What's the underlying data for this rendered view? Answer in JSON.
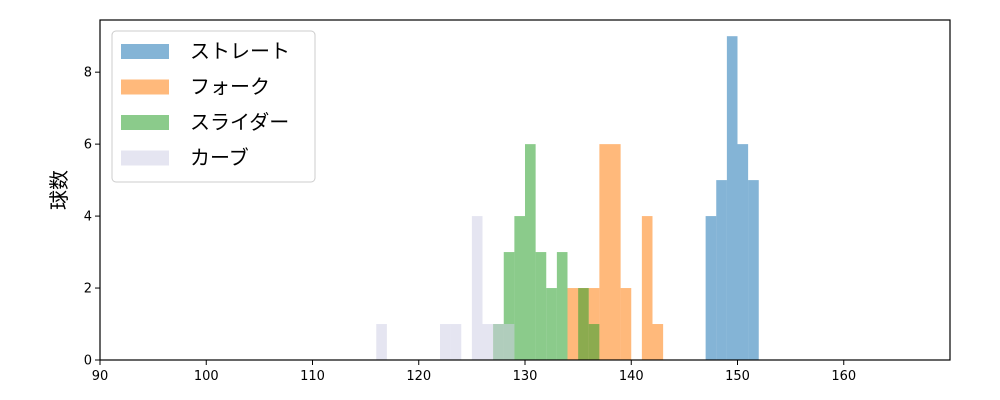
{
  "chart_data": {
    "type": "histogram",
    "xlabel": "",
    "ylabel": "球数",
    "xlim": [
      90,
      170
    ],
    "ylim": [
      0,
      9.45
    ],
    "x_ticks": [
      90,
      100,
      110,
      120,
      130,
      140,
      150,
      160
    ],
    "y_ticks": [
      0,
      2,
      4,
      6,
      8
    ],
    "grid": false,
    "legend_position": "top-left",
    "series": [
      {
        "name": "ストレート",
        "color": "#1f77b4",
        "bins": [
          {
            "start": 147.0,
            "end": 148.0,
            "count": 4
          },
          {
            "start": 148.0,
            "end": 149.0,
            "count": 5
          },
          {
            "start": 149.0,
            "end": 150.0,
            "count": 9
          },
          {
            "start": 150.0,
            "end": 151.0,
            "count": 6
          },
          {
            "start": 151.0,
            "end": 152.0,
            "count": 5
          }
        ]
      },
      {
        "name": "フォーク",
        "color": "#ff7f0e",
        "bins": [
          {
            "start": 134.0,
            "end": 135.0,
            "count": 2
          },
          {
            "start": 135.0,
            "end": 136.0,
            "count": 2
          },
          {
            "start": 136.0,
            "end": 137.0,
            "count": 2
          },
          {
            "start": 137.0,
            "end": 138.0,
            "count": 6
          },
          {
            "start": 138.0,
            "end": 139.0,
            "count": 6
          },
          {
            "start": 139.0,
            "end": 140.0,
            "count": 2
          },
          {
            "start": 141.0,
            "end": 142.0,
            "count": 4
          },
          {
            "start": 142.0,
            "end": 143.0,
            "count": 1
          }
        ]
      },
      {
        "name": "スライダー",
        "color": "#2ca02c",
        "bins": [
          {
            "start": 127.0,
            "end": 128.0,
            "count": 1
          },
          {
            "start": 128.0,
            "end": 129.0,
            "count": 3
          },
          {
            "start": 129.0,
            "end": 130.0,
            "count": 4
          },
          {
            "start": 130.0,
            "end": 131.0,
            "count": 6
          },
          {
            "start": 131.0,
            "end": 132.0,
            "count": 3
          },
          {
            "start": 132.0,
            "end": 133.0,
            "count": 2
          },
          {
            "start": 133.0,
            "end": 134.0,
            "count": 3
          },
          {
            "start": 135.0,
            "end": 136.0,
            "count": 2
          },
          {
            "start": 136.0,
            "end": 137.0,
            "count": 1
          }
        ]
      },
      {
        "name": "カーブ",
        "color": "#d0d0e6",
        "bins": [
          {
            "start": 116.0,
            "end": 117.0,
            "count": 1
          },
          {
            "start": 122.0,
            "end": 123.0,
            "count": 1
          },
          {
            "start": 123.0,
            "end": 124.0,
            "count": 1
          },
          {
            "start": 125.0,
            "end": 126.0,
            "count": 4
          },
          {
            "start": 126.0,
            "end": 127.0,
            "count": 1
          },
          {
            "start": 127.0,
            "end": 128.0,
            "count": 1
          },
          {
            "start": 128.0,
            "end": 129.0,
            "count": 1
          }
        ]
      }
    ]
  }
}
